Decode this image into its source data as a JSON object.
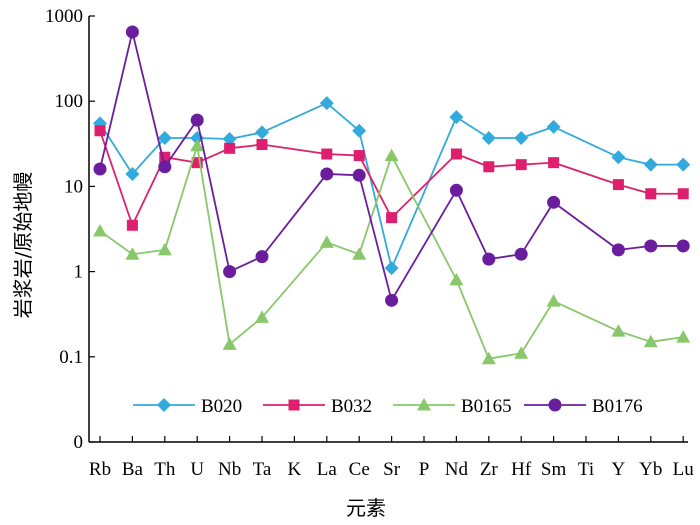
{
  "chart_data": {
    "type": "line",
    "xlabel": "元素",
    "ylabel": "岩浆岩/原始地幔",
    "yscale": "log",
    "ylim": [
      0.01,
      1000
    ],
    "ytick_labels": [
      "1000",
      "100",
      "10",
      "1",
      "0.1",
      "0"
    ],
    "ytick_values": [
      1000,
      100,
      10,
      1,
      0.1,
      0.01
    ],
    "categories": [
      "Rb",
      "Ba",
      "Th",
      "U",
      "Nb",
      "Ta",
      "K",
      "La",
      "Ce",
      "Sr",
      "P",
      "Nd",
      "Zr",
      "Hf",
      "Sm",
      "Ti",
      "Y",
      "Yb",
      "Lu"
    ],
    "legend_position": "bottom",
    "grid": false,
    "series": [
      {
        "name": "B020",
        "color": "#33aadd",
        "marker": "diamond",
        "values": [
          55,
          14,
          37,
          37,
          36,
          43,
          null,
          95,
          45,
          1.1,
          null,
          65,
          37,
          37,
          50,
          null,
          22,
          18,
          18
        ]
      },
      {
        "name": "B032",
        "color": "#dd1f6e",
        "marker": "square",
        "values": [
          45,
          3.5,
          22,
          19,
          28,
          31,
          null,
          24,
          23,
          4.3,
          null,
          24,
          17,
          18,
          19,
          null,
          10.5,
          8.2,
          8.2
        ]
      },
      {
        "name": "B0165",
        "color": "#88c86a",
        "marker": "triangle",
        "values": [
          3.0,
          1.6,
          1.8,
          30,
          0.14,
          0.29,
          null,
          2.2,
          1.6,
          23,
          null,
          0.8,
          0.095,
          0.11,
          0.45,
          null,
          0.2,
          0.15,
          0.17
        ]
      },
      {
        "name": "B0176",
        "color": "#6a1e9e",
        "marker": "circle",
        "values": [
          16,
          650,
          17,
          60,
          1.0,
          1.5,
          null,
          14,
          13.5,
          0.46,
          null,
          9.0,
          1.4,
          1.6,
          6.5,
          null,
          1.8,
          2.0,
          2.0
        ]
      }
    ]
  }
}
